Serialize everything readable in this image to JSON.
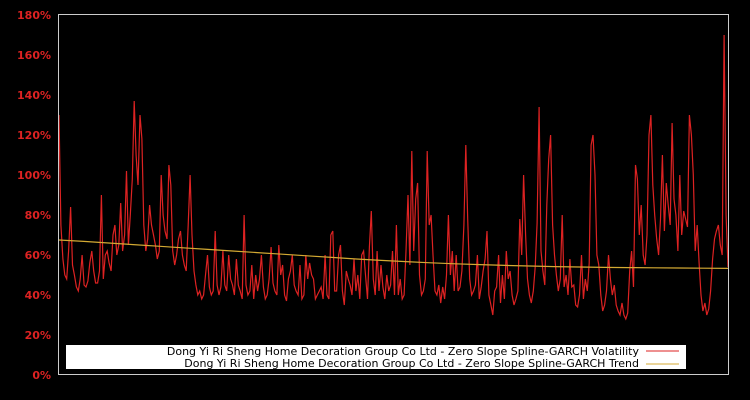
{
  "chart_data": {
    "type": "line",
    "title": "",
    "xlabel": "",
    "ylabel": "",
    "ylim": [
      0,
      180
    ],
    "y_ticks": [
      "0%",
      "20%",
      "40%",
      "60%",
      "80%",
      "100%",
      "120%",
      "140%",
      "160%",
      "180%"
    ],
    "grid": false,
    "legend_position": "lower center (inside plot)",
    "series": [
      {
        "name": "Dong Yi Ri Sheng Home Decoration Group Co Ltd - Zero Slope Spline-GARCH Volatility",
        "color": "#dd2222",
        "values": [
          130,
          75,
          58,
          50,
          48,
          62,
          84,
          55,
          50,
          44,
          42,
          48,
          60,
          45,
          44,
          47,
          56,
          62,
          52,
          46,
          46,
          52,
          90,
          48,
          60,
          62,
          56,
          52,
          70,
          75,
          60,
          65,
          86,
          62,
          70,
          102,
          65,
          80,
          98,
          137,
          110,
          95,
          130,
          118,
          75,
          62,
          68,
          85,
          75,
          70,
          65,
          58,
          62,
          100,
          80,
          72,
          68,
          105,
          95,
          62,
          55,
          60,
          68,
          72,
          60,
          55,
          52,
          75,
          100,
          70,
          52,
          45,
          40,
          42,
          38,
          40,
          50,
          60,
          44,
          40,
          42,
          72,
          45,
          40,
          44,
          62,
          45,
          42,
          60,
          48,
          45,
          40,
          58,
          45,
          42,
          38,
          80,
          45,
          40,
          42,
          55,
          38,
          50,
          42,
          48,
          60,
          44,
          38,
          40,
          48,
          64,
          46,
          42,
          40,
          65,
          50,
          55,
          40,
          37,
          48,
          52,
          60,
          45,
          42,
          40,
          55,
          38,
          40,
          60,
          48,
          56,
          50,
          48,
          38,
          40,
          42,
          44,
          38,
          60,
          40,
          38,
          70,
          72,
          42,
          42,
          60,
          65,
          42,
          35,
          52,
          48,
          45,
          40,
          58,
          42,
          50,
          38,
          60,
          62,
          50,
          38,
          64,
          82,
          48,
          40,
          62,
          42,
          55,
          44,
          38,
          50,
          42,
          45,
          62,
          40,
          75,
          40,
          48,
          38,
          40,
          62,
          90,
          55,
          112,
          62,
          88,
          96,
          50,
          40,
          42,
          48,
          112,
          75,
          80,
          60,
          42,
          40,
          45,
          36,
          44,
          38,
          50,
          80,
          50,
          62,
          42,
          60,
          42,
          44,
          52,
          75,
          115,
          78,
          48,
          40,
          42,
          45,
          60,
          38,
          44,
          52,
          58,
          72,
          40,
          35,
          30,
          42,
          44,
          60,
          36,
          50,
          38,
          62,
          48,
          52,
          40,
          35,
          38,
          42,
          78,
          60,
          100,
          70,
          48,
          40,
          36,
          42,
          54,
          76,
          134,
          62,
          52,
          45,
          85,
          108,
          120,
          75,
          60,
          50,
          42,
          48,
          80,
          44,
          50,
          40,
          58,
          44,
          45,
          35,
          34,
          40,
          60,
          38,
          48,
          42,
          56,
          115,
          120,
          100,
          60,
          55,
          40,
          32,
          35,
          42,
          60,
          48,
          40,
          45,
          35,
          32,
          30,
          36,
          30,
          28,
          31,
          52,
          62,
          44,
          105,
          98,
          70,
          85,
          60,
          55,
          70,
          120,
          130,
          95,
          80,
          68,
          60,
          78,
          110,
          72,
          96,
          85,
          75,
          126,
          88,
          80,
          62,
          100,
          70,
          82,
          78,
          74,
          130,
          120,
          100,
          62,
          75,
          56,
          40,
          32,
          36,
          30,
          33,
          42,
          58,
          68,
          72,
          75,
          65,
          60,
          170,
          80,
          54
        ]
      },
      {
        "name": "Dong Yi Ri Sheng Home Decoration Group Co Ltd - Zero Slope Spline-GARCH Trend",
        "color": "#d4aa33",
        "values": [
          67.5,
          66.8,
          66.0,
          65.2,
          64.4,
          63.6,
          62.8,
          62.0,
          61.2,
          60.4,
          59.6,
          58.8,
          58.0,
          57.3,
          56.7,
          56.1,
          55.6,
          55.2,
          54.8,
          54.5,
          54.2,
          54.0,
          53.8,
          53.7,
          53.6,
          53.5,
          53.4,
          53.3
        ]
      }
    ]
  },
  "legend": {
    "items": [
      {
        "label": "Dong Yi Ri Sheng Home Decoration Group Co Ltd - Zero Slope Spline-GARCH Volatility",
        "color": "#dd2222"
      },
      {
        "label": "Dong Yi Ri Sheng Home Decoration Group Co Ltd - Zero Slope Spline-GARCH Trend",
        "color": "#d4aa33"
      }
    ]
  },
  "axes": {
    "y_labels": [
      "0%",
      "20%",
      "40%",
      "60%",
      "80%",
      "100%",
      "120%",
      "140%",
      "160%",
      "180%"
    ]
  }
}
